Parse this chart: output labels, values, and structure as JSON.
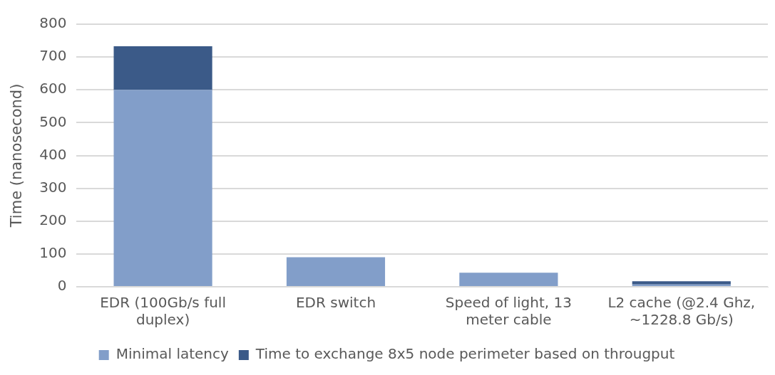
{
  "chart_data": {
    "type": "bar",
    "stacked": true,
    "ylabel": "Time (nanosecond)",
    "categories": [
      "EDR (100Gb/s full duplex)",
      "EDR switch",
      "Speed of light, 13 meter cable",
      "L2 cache (@2.4 Ghz, ~1228.8 Gb/s)"
    ],
    "series": [
      {
        "name": "Minimal latency",
        "color": "#829ec9",
        "values": [
          600,
          90,
          43,
          7
        ]
      },
      {
        "name": "Time to exchange 8x5 node perimeter based on througput",
        "color": "#3b5a88",
        "values": [
          133,
          null,
          null,
          10
        ]
      }
    ],
    "ylim": [
      0,
      800
    ],
    "yticks": [
      0,
      100,
      200,
      300,
      400,
      500,
      600,
      700,
      800
    ],
    "grid": "y",
    "legend": "bottom"
  }
}
